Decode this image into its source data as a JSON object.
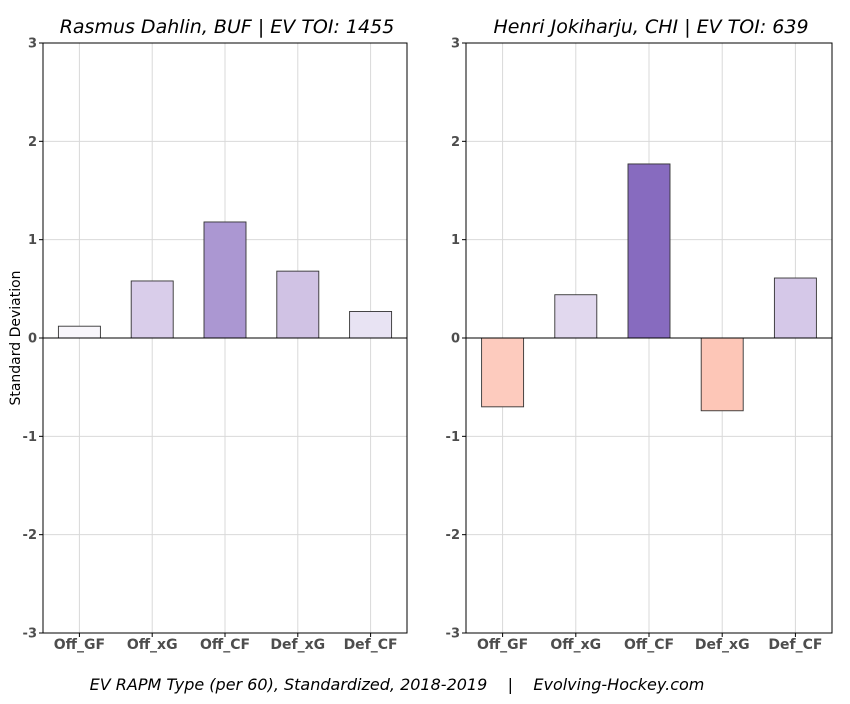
{
  "chart_data": [
    {
      "type": "bar",
      "title": "Rasmus Dahlin, BUF  |  EV TOI: 1455",
      "ylabel": "Standard Deviation",
      "xlabel": "",
      "categories": [
        "Off_GF",
        "Off_xG",
        "Off_CF",
        "Def_xG",
        "Def_CF"
      ],
      "values": [
        0.12,
        0.58,
        1.18,
        0.68,
        0.27
      ],
      "colors": [
        "#f8f6fb",
        "#d9cdea",
        "#ab97d2",
        "#d0c2e4",
        "#e8e3f3"
      ],
      "ylim": [
        -3,
        3
      ],
      "yticks": [
        "3",
        "2",
        "1",
        "0",
        "-1",
        "-2",
        "-3"
      ],
      "grid": true
    },
    {
      "type": "bar",
      "title": "Henri Jokiharju, CHI  |  EV TOI: 639",
      "ylabel": "",
      "xlabel": "",
      "categories": [
        "Off_GF",
        "Off_xG",
        "Off_CF",
        "Def_xG",
        "Def_CF"
      ],
      "values": [
        -0.7,
        0.44,
        1.77,
        -0.74,
        0.61
      ],
      "colors": [
        "#fdcbbe",
        "#e1d8ee",
        "#876bbf",
        "#fdc6b7",
        "#d5c8e8"
      ],
      "ylim": [
        -3,
        3
      ],
      "yticks": [
        "3",
        "2",
        "1",
        "0",
        "-1",
        "-2",
        "-3"
      ],
      "grid": true
    }
  ],
  "caption": "EV RAPM Type (per 60), Standardized, 2018-2019    |    Evolving-Hockey.com"
}
